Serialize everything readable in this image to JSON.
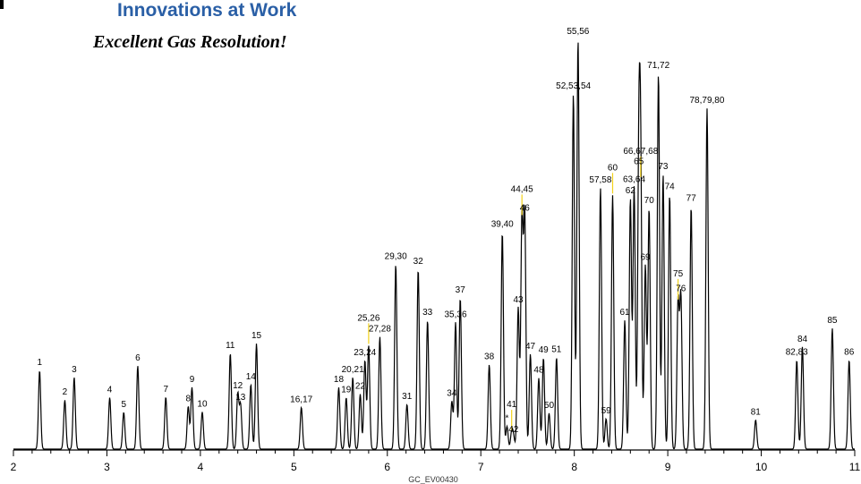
{
  "header": {
    "title": "Innovations at Work",
    "subtitle": "Excellent Gas Resolution!"
  },
  "chart_data": {
    "type": "line",
    "title": "",
    "xlabel": "",
    "ylabel": "",
    "xlim": [
      2,
      11
    ],
    "ylim": [
      0,
      100
    ],
    "x_ticks": [
      2,
      3,
      4,
      5,
      6,
      7,
      8,
      9,
      10,
      11
    ],
    "x_tick_labels": [
      "2",
      "3",
      "4",
      "5",
      "6",
      "7",
      "8",
      "9",
      "10",
      "11"
    ],
    "grid": false,
    "footer_code": "GC_EV00430",
    "peaks": [
      {
        "label": "1",
        "rt": 2.28,
        "height": 18.6
      },
      {
        "label": "2",
        "rt": 2.55,
        "height": 11.6
      },
      {
        "label": "3",
        "rt": 2.65,
        "height": 17.0
      },
      {
        "label": "4",
        "rt": 3.03,
        "height": 12.2
      },
      {
        "label": "5",
        "rt": 3.18,
        "height": 8.7
      },
      {
        "label": "6",
        "rt": 3.33,
        "height": 19.7
      },
      {
        "label": "7",
        "rt": 3.63,
        "height": 12.3
      },
      {
        "label": "8",
        "rt": 3.87,
        "height": 10.1
      },
      {
        "label": "9",
        "rt": 3.91,
        "height": 14.6
      },
      {
        "label": "10",
        "rt": 4.02,
        "height": 8.8
      },
      {
        "label": "11",
        "rt": 4.32,
        "height": 22.7
      },
      {
        "label": "12",
        "rt": 4.4,
        "height": 13.1
      },
      {
        "label": "13",
        "rt": 4.43,
        "height": 10.4
      },
      {
        "label": "14",
        "rt": 4.54,
        "height": 15.3
      },
      {
        "label": "15",
        "rt": 4.6,
        "height": 25.0
      },
      {
        "label": "16,17",
        "rt": 5.08,
        "height": 9.9
      },
      {
        "label": "18",
        "rt": 5.48,
        "height": 14.6
      },
      {
        "label": "19",
        "rt": 5.56,
        "height": 12.2
      },
      {
        "label": "20,21",
        "rt": 5.63,
        "height": 17.0
      },
      {
        "label": "22",
        "rt": 5.71,
        "height": 13.0
      },
      {
        "label": "23,24",
        "rt": 5.76,
        "height": 21.0
      },
      {
        "label": "25,26",
        "rt": 5.8,
        "height": 24.5
      },
      {
        "label": "27,28",
        "rt": 5.92,
        "height": 26.6
      },
      {
        "label": "29,30",
        "rt": 6.09,
        "height": 43.8
      },
      {
        "label": "31",
        "rt": 6.21,
        "height": 10.6
      },
      {
        "label": "32",
        "rt": 6.33,
        "height": 42.6
      },
      {
        "label": "33",
        "rt": 6.43,
        "height": 30.5
      },
      {
        "label": "34",
        "rt": 6.69,
        "height": 11.3
      },
      {
        "label": "35,36",
        "rt": 6.73,
        "height": 30.0
      },
      {
        "label": "37",
        "rt": 6.78,
        "height": 35.8
      },
      {
        "label": "38",
        "rt": 7.09,
        "height": 20.0
      },
      {
        "label": "39,40",
        "rt": 7.23,
        "height": 51.4
      },
      {
        "label": "*",
        "rt": 7.28,
        "height": 5.4
      },
      {
        "label": "41",
        "rt": 7.33,
        "height": 4.0
      },
      {
        "label": "42",
        "rt": 7.35,
        "height": 2.8
      },
      {
        "label": "43",
        "rt": 7.4,
        "height": 33.5
      },
      {
        "label": "44,45",
        "rt": 7.44,
        "height": 55.0
      },
      {
        "label": "46",
        "rt": 7.47,
        "height": 55.2
      },
      {
        "label": "47",
        "rt": 7.53,
        "height": 22.5
      },
      {
        "label": "48",
        "rt": 7.62,
        "height": 16.8
      },
      {
        "label": "49",
        "rt": 7.67,
        "height": 21.6
      },
      {
        "label": "50",
        "rt": 7.73,
        "height": 8.5
      },
      {
        "label": "51",
        "rt": 7.81,
        "height": 21.7
      },
      {
        "label": "52,53,54",
        "rt": 7.99,
        "height": 84.1
      },
      {
        "label": "55,56",
        "rt": 8.04,
        "height": 97.0
      },
      {
        "label": "57,58",
        "rt": 8.28,
        "height": 61.9
      },
      {
        "label": "59",
        "rt": 8.34,
        "height": 7.2
      },
      {
        "label": "60",
        "rt": 8.41,
        "height": 60.1
      },
      {
        "label": "61",
        "rt": 8.54,
        "height": 30.5
      },
      {
        "label": "62",
        "rt": 8.6,
        "height": 59.3
      },
      {
        "label": "63,64",
        "rt": 8.64,
        "height": 62.0
      },
      {
        "label": "65",
        "rt": 8.69,
        "height": 66.2
      },
      {
        "label": "66,67,68",
        "rt": 8.71,
        "height": 64.0
      },
      {
        "label": "69",
        "rt": 8.76,
        "height": 43.5
      },
      {
        "label": "70",
        "rt": 8.8,
        "height": 57.0
      },
      {
        "label": "71,72",
        "rt": 8.9,
        "height": 89.0
      },
      {
        "label": "73",
        "rt": 8.95,
        "height": 65.0
      },
      {
        "label": "74",
        "rt": 9.02,
        "height": 60.3
      },
      {
        "label": "75",
        "rt": 9.11,
        "height": 35.0
      },
      {
        "label": "76",
        "rt": 9.14,
        "height": 36.1
      },
      {
        "label": "77",
        "rt": 9.25,
        "height": 57.5
      },
      {
        "label": "78,79,80",
        "rt": 9.42,
        "height": 80.7
      },
      {
        "label": "81",
        "rt": 9.94,
        "height": 6.9
      },
      {
        "label": "82,83",
        "rt": 10.38,
        "height": 21.1
      },
      {
        "label": "84",
        "rt": 10.44,
        "height": 24.2
      },
      {
        "label": "85",
        "rt": 10.76,
        "height": 28.6
      },
      {
        "label": "86",
        "rt": 10.94,
        "height": 21.1
      }
    ]
  }
}
